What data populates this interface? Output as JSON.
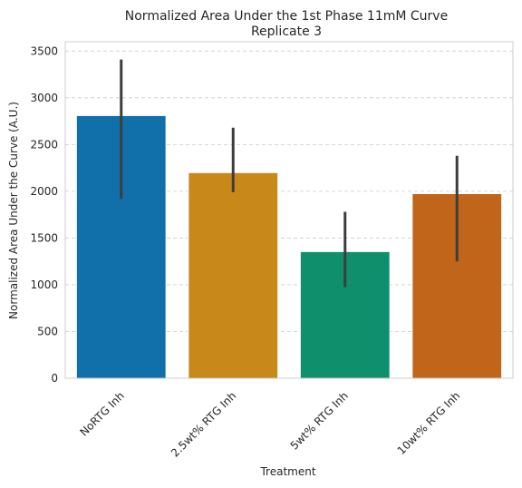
{
  "chart_data": {
    "type": "bar",
    "title": "Normalized Area Under the 1st Phase 11mM Curve",
    "subtitle": "Replicate 3",
    "xlabel": "Treatment",
    "ylabel": "Normalized Area Under the Curve (A.U.)",
    "ylim": [
      0,
      3600
    ],
    "yticks": [
      0,
      500,
      1000,
      1500,
      2000,
      2500,
      3000,
      3500
    ],
    "grid": true,
    "categories": [
      "NoRTG Inh",
      "2.5wt% RTG Inh",
      "5wt% RTG Inh",
      "10wt% RTG Inh"
    ],
    "values": [
      2810,
      2200,
      1355,
      1975
    ],
    "error_low": [
      1920,
      1990,
      975,
      1250
    ],
    "error_high": [
      3410,
      2680,
      1780,
      2380
    ],
    "colors": [
      "#1170aa",
      "#c8891a",
      "#0f8f6b",
      "#c0651a"
    ]
  }
}
